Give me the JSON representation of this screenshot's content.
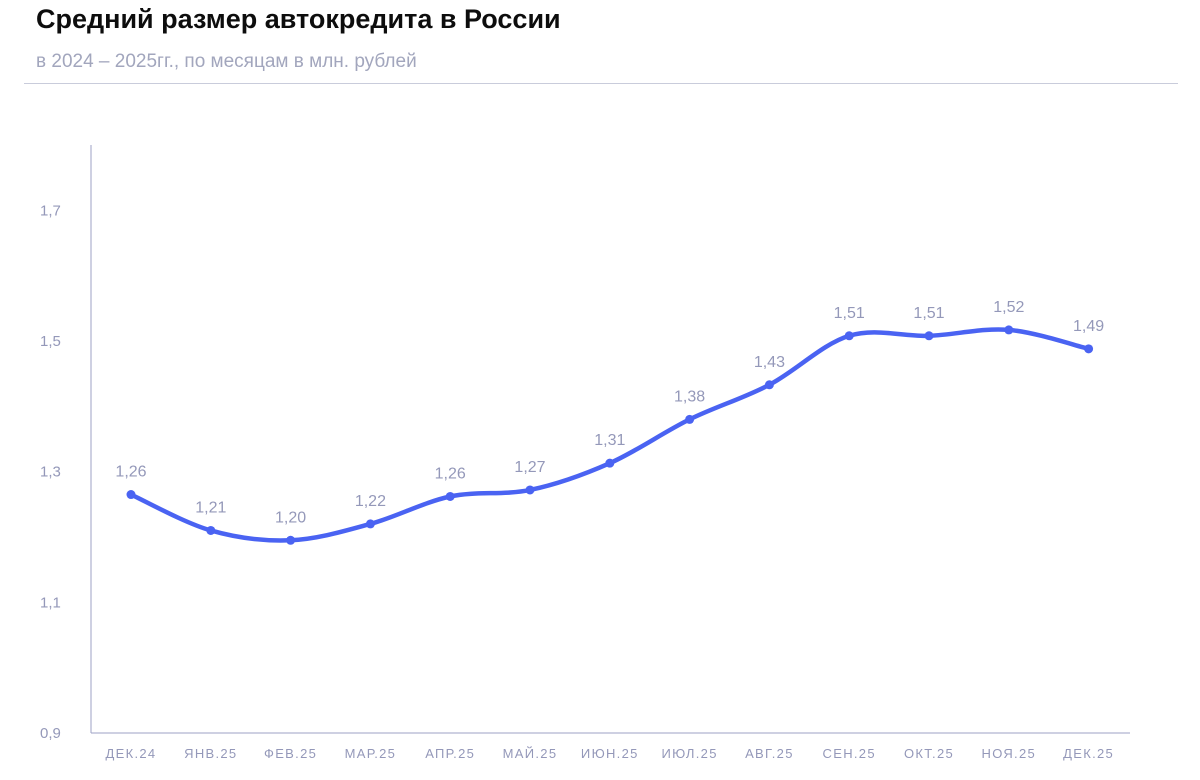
{
  "header": {
    "title": "Средний размер автокредита в России",
    "subtitle": "в 2024 – 2025гг., по месяцам в млн. рублей"
  },
  "colors": {
    "line": "#4a63f2",
    "axis": "#9ea2c4",
    "tick_text": "#9498b9"
  },
  "chart_data": {
    "type": "line",
    "categories": [
      "ДЕК.24",
      "ЯНВ.25",
      "ФЕВ.25",
      "МАР.25",
      "АПР.25",
      "МАЙ.25",
      "ИЮН.25",
      "ИЮЛ.25",
      "АВГ.25",
      "СЕН.25",
      "ОКТ.25",
      "НОЯ.25",
      "ДЕК.25"
    ],
    "values": [
      1.265,
      1.21,
      1.195,
      1.22,
      1.262,
      1.272,
      1.313,
      1.38,
      1.433,
      1.508,
      1.508,
      1.517,
      1.488
    ],
    "data_labels": [
      "1,26",
      "1,21",
      "1,20",
      "1,22",
      "1,26",
      "1,27",
      "1,31",
      "1,38",
      "1,43",
      "1,51",
      "1,51",
      "1,52",
      "1,49"
    ],
    "y_ticks": [
      0.9,
      1.1,
      1.3,
      1.5,
      1.7
    ],
    "y_tick_labels": [
      "0,9",
      "1,1",
      "1,3",
      "1,5",
      "1,7"
    ],
    "ylim": [
      0.9,
      1.8
    ],
    "grid": false,
    "legend": "none",
    "smooth": true,
    "markers": true
  }
}
